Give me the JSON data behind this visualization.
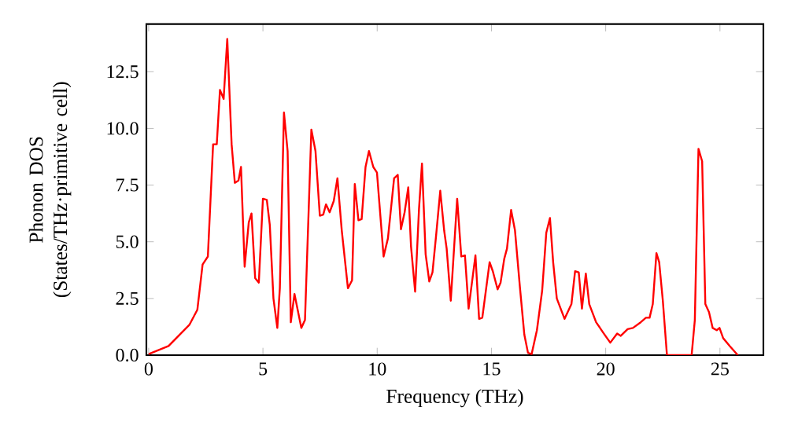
{
  "chart_data": {
    "type": "line",
    "xlabel": "Frequency (THz)",
    "ylabel": "Phonon DOS (States/THz·primitive cell)",
    "x": [
      0,
      0.87,
      1.79,
      2.13,
      2.36,
      2.59,
      2.82,
      2.98,
      3.12,
      3.28,
      3.44,
      3.63,
      3.77,
      3.93,
      4.04,
      4.2,
      4.38,
      4.5,
      4.66,
      4.82,
      5.0,
      5.17,
      5.3,
      5.46,
      5.63,
      5.74,
      5.92,
      6.08,
      6.22,
      6.38,
      6.68,
      6.84,
      7.12,
      7.3,
      7.49,
      7.64,
      7.76,
      7.92,
      8.1,
      8.26,
      8.45,
      8.72,
      8.9,
      9.02,
      9.18,
      9.32,
      9.49,
      9.64,
      9.83,
      9.99,
      10.28,
      10.47,
      10.74,
      10.9,
      11.04,
      11.2,
      11.36,
      11.48,
      11.66,
      11.83,
      11.96,
      12.12,
      12.28,
      12.42,
      12.58,
      12.76,
      12.93,
      13.04,
      13.22,
      13.5,
      13.68,
      13.84,
      14.0,
      14.3,
      14.46,
      14.6,
      14.92,
      15.06,
      15.27,
      15.4,
      15.56,
      15.68,
      15.86,
      16.03,
      16.25,
      16.44,
      16.6,
      16.76,
      16.99,
      17.22,
      17.4,
      17.56,
      17.7,
      17.86,
      18.2,
      18.5,
      18.66,
      18.82,
      18.96,
      19.13,
      19.28,
      19.58,
      19.92,
      20.2,
      20.5,
      20.66,
      20.96,
      21.19,
      21.53,
      21.76,
      21.92,
      22.06,
      22.22,
      22.34,
      22.5,
      22.68,
      23.76,
      23.9,
      24.06,
      24.22,
      24.36,
      24.52,
      24.68,
      24.86,
      24.98,
      25.14,
      25.43,
      25.78
    ],
    "values": [
      0.05,
      0.4,
      1.35,
      2.0,
      4.0,
      4.35,
      9.3,
      9.3,
      11.7,
      11.3,
      13.95,
      9.3,
      7.6,
      7.7,
      8.3,
      3.9,
      5.85,
      6.25,
      3.4,
      3.2,
      6.9,
      6.85,
      5.75,
      2.5,
      1.2,
      2.95,
      10.7,
      9.0,
      1.45,
      2.7,
      1.2,
      1.55,
      9.95,
      9.0,
      6.15,
      6.2,
      6.65,
      6.3,
      6.8,
      7.8,
      5.5,
      2.95,
      3.3,
      7.55,
      5.95,
      6.0,
      8.3,
      9.0,
      8.3,
      8.05,
      4.35,
      5.15,
      7.8,
      7.95,
      5.55,
      6.3,
      7.4,
      4.8,
      2.8,
      6.45,
      8.45,
      4.45,
      3.25,
      3.65,
      5.3,
      7.25,
      5.5,
      4.7,
      2.4,
      6.9,
      4.35,
      4.4,
      2.05,
      4.4,
      1.6,
      1.65,
      4.1,
      3.7,
      2.9,
      3.2,
      4.25,
      4.7,
      6.4,
      5.5,
      2.95,
      0.9,
      0.1,
      0.05,
      1.1,
      2.85,
      5.4,
      6.05,
      4.1,
      2.5,
      1.6,
      2.25,
      3.7,
      3.65,
      2.05,
      3.6,
      2.25,
      1.45,
      0.95,
      0.55,
      0.95,
      0.85,
      1.15,
      1.2,
      1.45,
      1.65,
      1.65,
      2.25,
      4.5,
      4.1,
      2.4,
      0,
      0,
      1.55,
      9.1,
      8.55,
      2.25,
      1.9,
      1.2,
      1.1,
      1.2,
      0.75,
      0.4,
      0
    ],
    "color": "#ff0000",
    "xlim": [
      -0.1,
      26.9
    ],
    "ylim": [
      0,
      14.6
    ],
    "xticks": [
      0,
      5,
      10,
      15,
      20,
      25
    ],
    "yticks": [
      {
        "value": 0,
        "label": "0.0"
      },
      {
        "value": 2.5,
        "label": "2.5"
      },
      {
        "value": 5,
        "label": "5.0"
      },
      {
        "value": 7.5,
        "label": "7.5"
      },
      {
        "value": 10,
        "label": "10.0"
      },
      {
        "value": 12.5,
        "label": "12.5"
      }
    ]
  }
}
